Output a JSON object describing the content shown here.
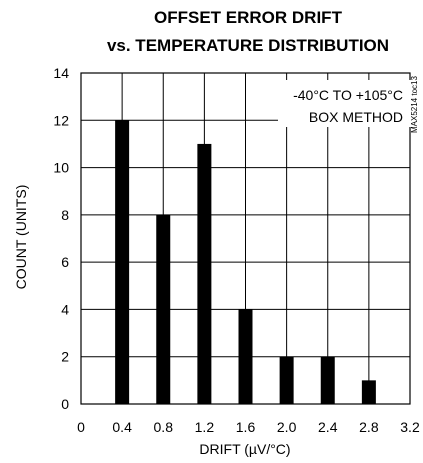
{
  "chart_data": {
    "type": "bar",
    "title_lines": [
      "OFFSET ERROR DRIFT",
      "vs. TEMPERATURE DISTRIBUTION"
    ],
    "xlabel": "DRIFT (µV/°C)",
    "ylabel": "COUNT (UNITS)",
    "x_ticks": [
      "0",
      "0.4",
      "0.8",
      "1.2",
      "1.6",
      "2.0",
      "2.4",
      "2.8",
      "3.2"
    ],
    "x_range": [
      0,
      3.2
    ],
    "y_ticks": [
      "0",
      "2",
      "4",
      "6",
      "8",
      "10",
      "12",
      "14"
    ],
    "ylim": [
      0,
      14
    ],
    "grid": true,
    "bars": [
      {
        "x": 0.4,
        "value": 12
      },
      {
        "x": 0.8,
        "value": 8
      },
      {
        "x": 1.2,
        "value": 11
      },
      {
        "x": 1.6,
        "value": 4
      },
      {
        "x": 2.0,
        "value": 2
      },
      {
        "x": 2.4,
        "value": 2
      },
      {
        "x": 2.8,
        "value": 1
      }
    ],
    "annotation_lines": [
      "-40°C TO +105°C",
      "BOX METHOD"
    ],
    "side_label": "MAX5214 toc13",
    "colors": {
      "bars": "#000000",
      "grid": "#000000",
      "background": "#ffffff"
    }
  }
}
